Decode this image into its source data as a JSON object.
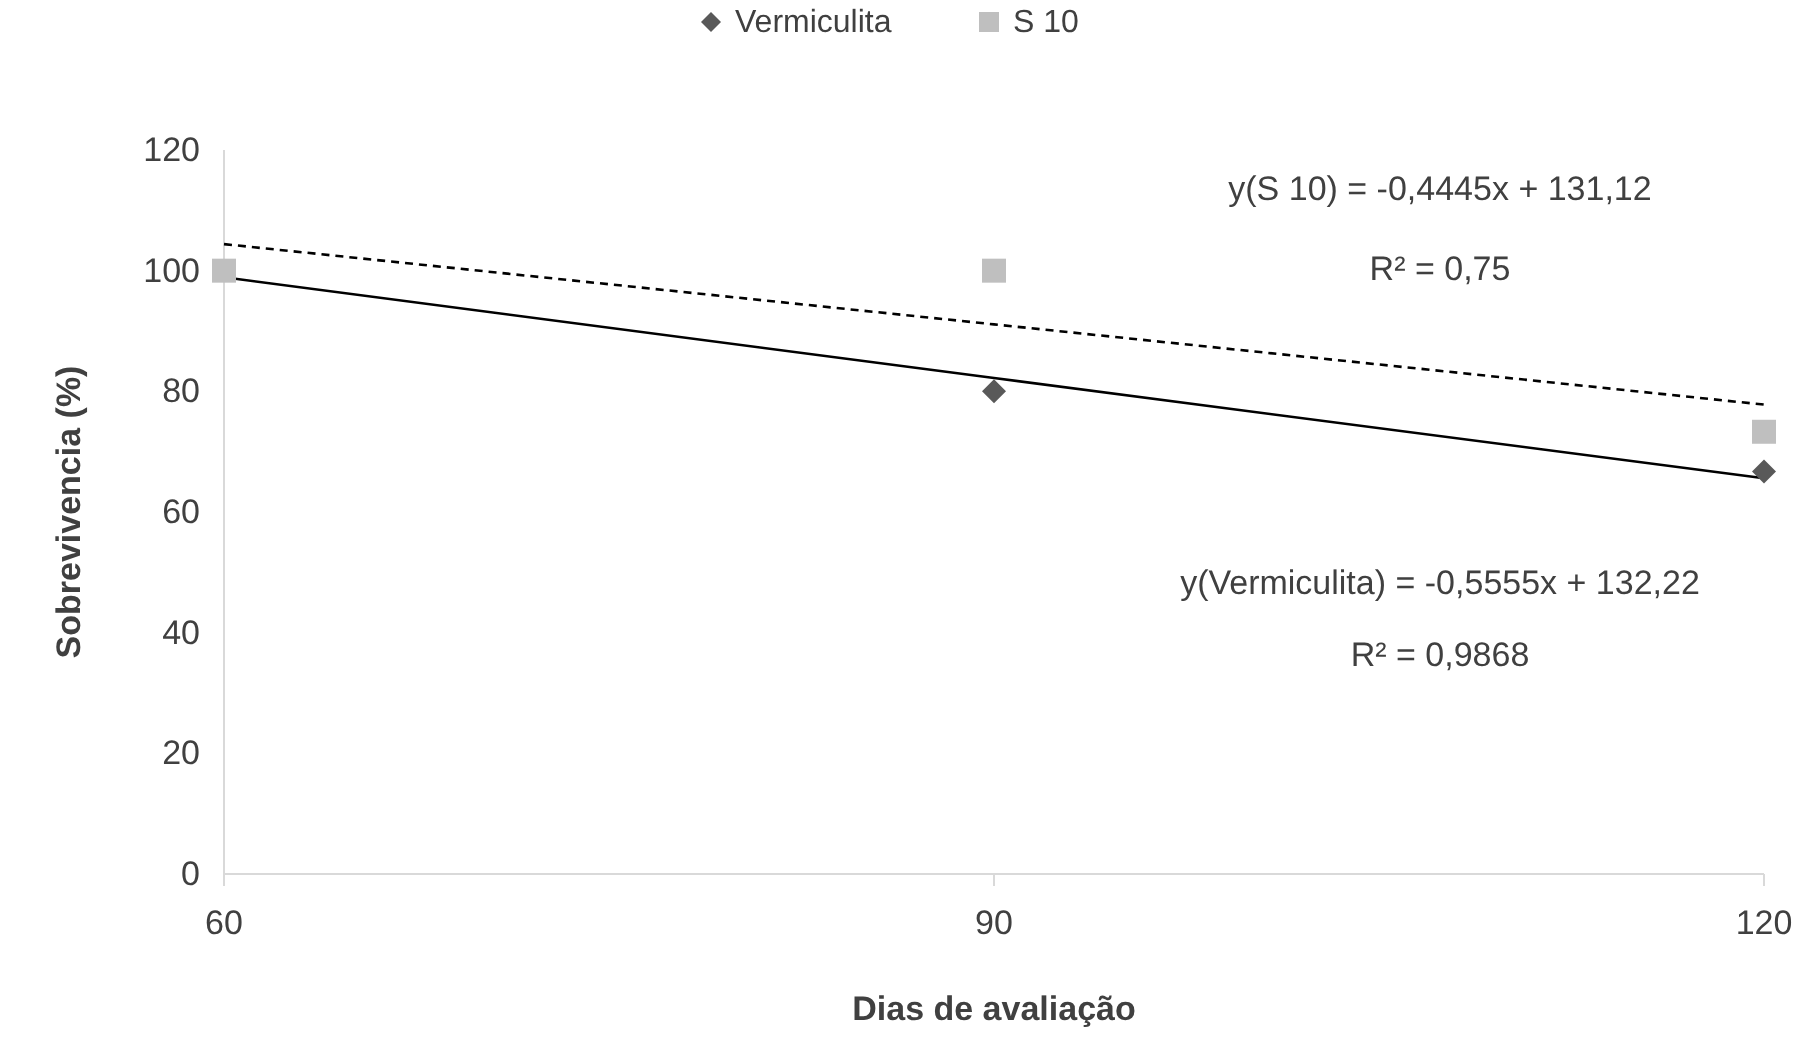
{
  "chart_data": {
    "type": "scatter",
    "xlabel": "Dias de avaliação",
    "ylabel": "Sobrevivencia (%)",
    "x": [
      60,
      90,
      120
    ],
    "series": [
      {
        "name": "Vermiculita",
        "color": "#595959",
        "marker": "diamond",
        "values": [
          null,
          80,
          66.7
        ]
      },
      {
        "name": "S 10",
        "color": "#bfbfbf",
        "marker": "square",
        "values": [
          100,
          100,
          73.3
        ]
      },
      {
        "type": "line",
        "color": "#000000",
        "values": [
          98.9,
          82.2,
          65.6
        ],
        "marker": "none",
        "line_style": "solid"
      },
      {
        "type": "line",
        "color": "#000000",
        "values": [
          104.4,
          91.1,
          77.8
        ],
        "marker": "none",
        "line_style": "dashed"
      }
    ],
    "xlim": [
      60,
      120
    ],
    "xticks": [
      60,
      90,
      120
    ],
    "ylim": [
      0,
      120
    ],
    "yticks": [
      0,
      20,
      40,
      60,
      80,
      100,
      120
    ],
    "grid": false,
    "legend": "top",
    "annotations": [
      "y(S 10) = -0,4445x + 131,12",
      "R² = 0,75",
      "y(Vermiculita) = -0,5555x + 132,22",
      "R² = 0,9868"
    ]
  }
}
